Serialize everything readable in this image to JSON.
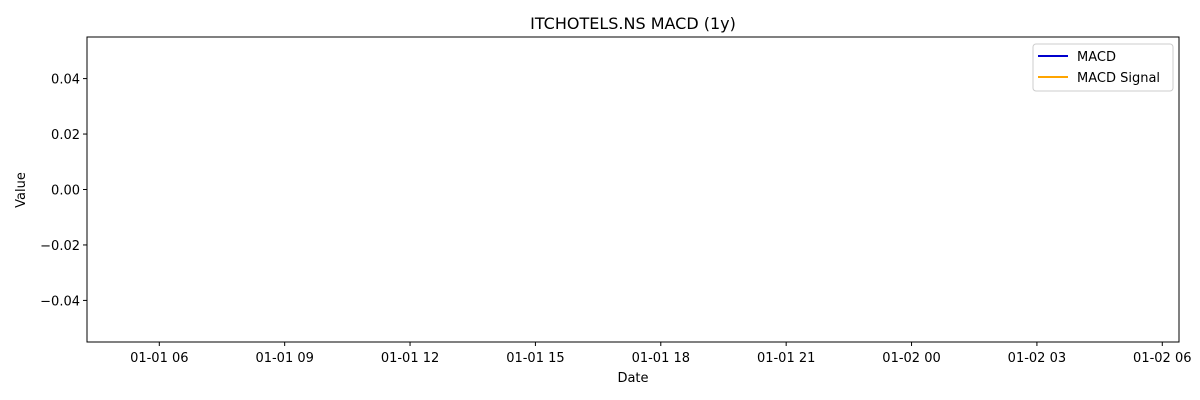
{
  "chart_data": {
    "type": "line",
    "title": "ITCHOTELS.NS MACD (1y)",
    "xlabel": "Date",
    "ylabel": "Value",
    "x_ticks": [
      "01-01 06",
      "01-01 09",
      "01-01 12",
      "01-01 15",
      "01-01 18",
      "01-01 21",
      "01-02 00",
      "01-02 03",
      "01-02 06"
    ],
    "x_range_hours": [
      4.27,
      30.4
    ],
    "x_tick_hours": [
      6,
      9,
      12,
      15,
      18,
      21,
      24,
      27,
      30
    ],
    "y_ticks": [
      "0.04",
      "0.02",
      "0.00",
      "−0.02",
      "−0.04"
    ],
    "y_tick_values": [
      0.04,
      0.02,
      0.0,
      -0.02,
      -0.04
    ],
    "ylim": [
      -0.055,
      0.055
    ],
    "grid": false,
    "legend_position": "top-right",
    "series": [
      {
        "name": "MACD",
        "color": "#0000cd",
        "values": []
      },
      {
        "name": "MACD Signal",
        "color": "#ffa500",
        "values": []
      }
    ]
  }
}
